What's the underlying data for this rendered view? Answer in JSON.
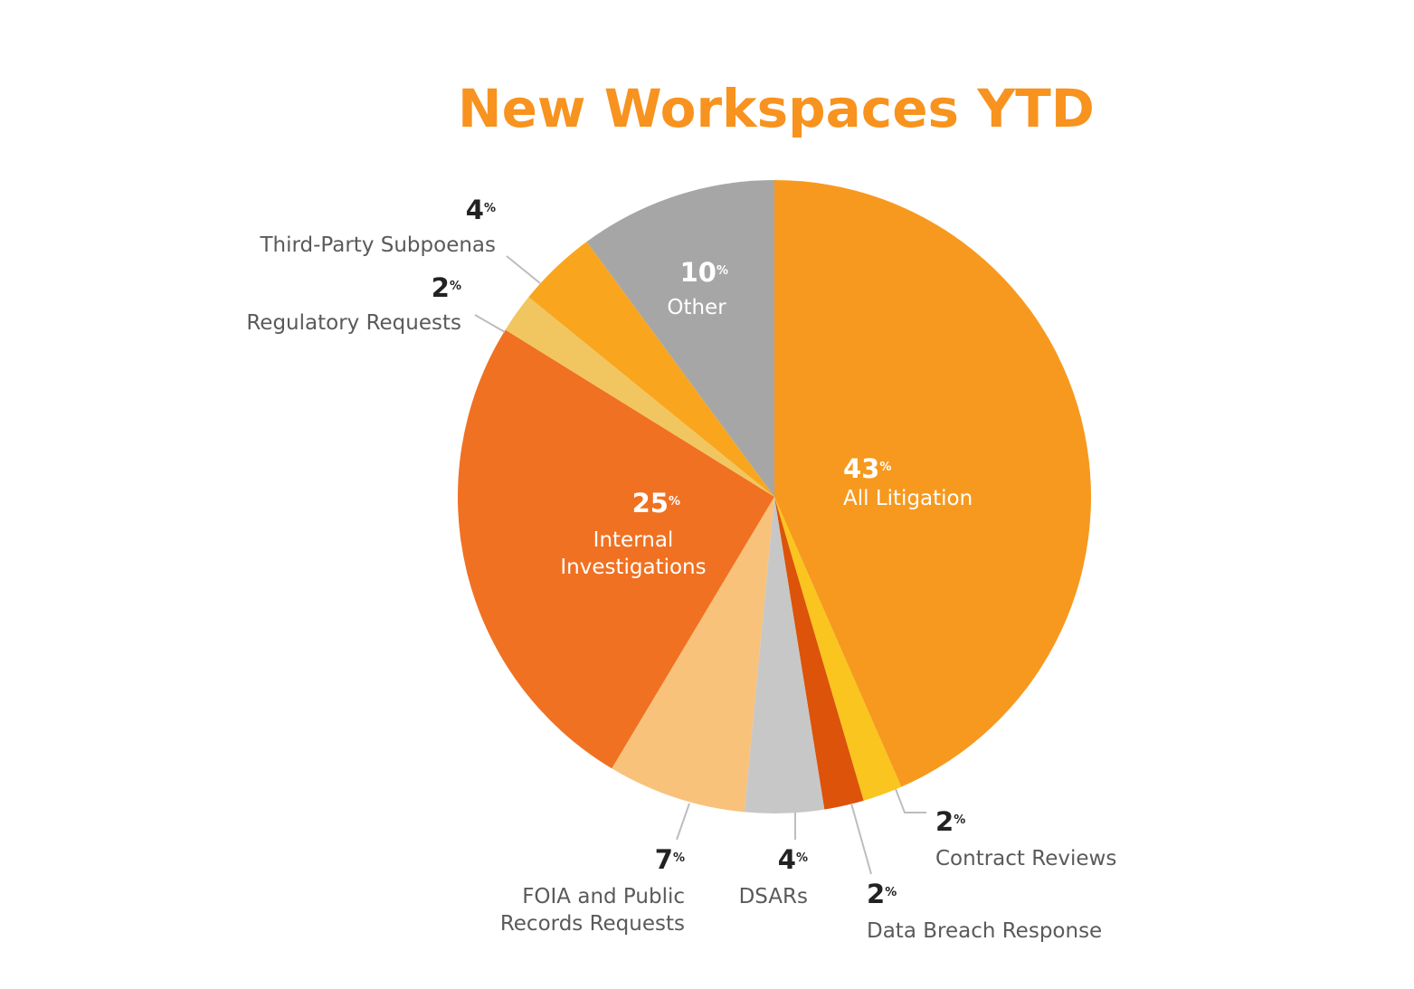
{
  "chart_data": {
    "type": "pie",
    "title": "New Workspaces YTD",
    "title_color": "#F7931E",
    "unit_suffix": "%",
    "start": "12 o'clock",
    "direction": "clockwise",
    "slices": [
      {
        "key": "all-litigation",
        "label": "All Litigation",
        "label_lines": [
          "All Litigation"
        ],
        "value": 43,
        "color": "#F7991F",
        "label_placement": "inside"
      },
      {
        "key": "contract-reviews",
        "label": "Contract Reviews",
        "label_lines": [
          "Contract Reviews"
        ],
        "value": 2,
        "color": "#F9C51E",
        "label_placement": "outside"
      },
      {
        "key": "data-breach-response",
        "label": "Data Breach Response",
        "label_lines": [
          "Data Breach Response"
        ],
        "value": 2,
        "color": "#DC5309",
        "label_placement": "outside"
      },
      {
        "key": "dsars",
        "label": "DSARs",
        "label_lines": [
          "DSARs"
        ],
        "value": 4,
        "color": "#C7C7C7",
        "label_placement": "outside"
      },
      {
        "key": "foia-public-records",
        "label": "FOIA and Public Records Requests",
        "label_lines": [
          "FOIA and Public",
          "Records Requests"
        ],
        "value": 7,
        "color": "#F8C27A",
        "label_placement": "outside"
      },
      {
        "key": "internal-investigations",
        "label": "Internal Investigations",
        "label_lines": [
          "Internal",
          "Investigations"
        ],
        "value": 25,
        "color": "#F07122",
        "label_placement": "inside"
      },
      {
        "key": "regulatory-requests",
        "label": "Regulatory Requests",
        "label_lines": [
          "Regulatory Requests"
        ],
        "value": 2,
        "color": "#F1C660",
        "label_placement": "outside"
      },
      {
        "key": "third-party-subpoenas",
        "label": "Third-Party Subpoenas",
        "label_lines": [
          "Third-Party Subpoenas"
        ],
        "value": 4,
        "color": "#F9A61E",
        "label_placement": "outside"
      },
      {
        "key": "other",
        "label": "Other",
        "label_lines": [
          "Other"
        ],
        "value": 10,
        "color": "#A6A6A6",
        "label_placement": "inside"
      }
    ]
  }
}
